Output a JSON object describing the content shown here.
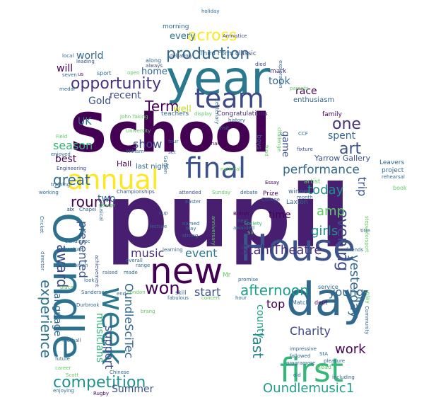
{
  "palette": {
    "deep_purple": "#440154",
    "indigo": "#3b528b",
    "blue_grey": "#31688e",
    "teal": "#21918c",
    "green": "#35b779",
    "lime": "#5ec962",
    "yellow": "#fde725",
    "violet": "#472d7b",
    "sea": "#1f9e89"
  },
  "words": [
    {
      "text": "School",
      "color": "#440154"
    },
    {
      "text": "pupil",
      "color": "#481f70"
    },
    {
      "text": "year",
      "color": "#2a788e"
    },
    {
      "text": "new",
      "color": "#440154"
    },
    {
      "text": "House",
      "color": "#3b528b"
    },
    {
      "text": "day",
      "color": "#31688e"
    },
    {
      "text": "Oundle",
      "color": "#2c718e"
    },
    {
      "text": "first",
      "color": "#35b779"
    },
    {
      "text": "team",
      "color": "#3e4989"
    },
    {
      "text": "final",
      "color": "#3b528b"
    },
    {
      "text": "annual",
      "color": "#fde725"
    },
    {
      "text": "week",
      "color": "#2a788e"
    },
    {
      "text": "across",
      "color": "#fde725"
    },
    {
      "text": "production",
      "color": "#31688e"
    },
    {
      "text": "opportunity",
      "color": "#46327e"
    },
    {
      "text": "competition",
      "color": "#21918c"
    },
    {
      "text": "won",
      "color": "#440154"
    },
    {
      "text": "afternoon",
      "color": "#1f9e89"
    },
    {
      "text": "Oundlemusic1",
      "color": "#1f9e89"
    },
    {
      "text": "StahlTheatre",
      "color": "#472d7b"
    },
    {
      "text": "evening",
      "color": "#3e4989"
    },
    {
      "text": "experience",
      "color": "#2c718e"
    },
    {
      "text": "award",
      "color": "#3e4989"
    },
    {
      "text": "round",
      "color": "#440154"
    },
    {
      "text": "great",
      "color": "#31688e"
    },
    {
      "text": "Term",
      "color": "#440154"
    },
    {
      "text": "art",
      "color": "#3b528b"
    },
    {
      "text": "one",
      "color": "#46327e"
    },
    {
      "text": "amp",
      "color": "#5ec962"
    },
    {
      "text": "trip",
      "color": "#3b528b"
    },
    {
      "text": "today",
      "color": "#21918c"
    },
    {
      "text": "performance",
      "color": "#31688e"
    },
    {
      "text": "girls",
      "color": "#21918c"
    },
    {
      "text": "yesterday",
      "color": "#31688e"
    },
    {
      "text": "work",
      "color": "#440154"
    },
    {
      "text": "Charity",
      "color": "#3e4989"
    },
    {
      "text": "young",
      "color": "#31688e"
    },
    {
      "text": "last",
      "color": "#26828e"
    },
    {
      "text": "county",
      "color": "#20a486"
    },
    {
      "text": "top",
      "color": "#440154"
    },
    {
      "text": "start",
      "color": "#3b528b"
    },
    {
      "text": "event",
      "color": "#2a788e"
    },
    {
      "text": "music",
      "color": "#472d7b"
    },
    {
      "text": "OundleSciTec",
      "color": "#31688e"
    },
    {
      "text": "musicians",
      "color": "#35b779"
    },
    {
      "text": "support",
      "color": "#3b528b"
    },
    {
      "text": "presented",
      "color": "#3b528b"
    },
    {
      "text": "language",
      "color": "#31688e"
    },
    {
      "text": "Summer",
      "color": "#3b528b"
    },
    {
      "text": "two",
      "color": "#31688e"
    },
    {
      "text": "season",
      "color": "#35b779"
    },
    {
      "text": "show",
      "color": "#3b528b"
    },
    {
      "text": "best",
      "color": "#440154"
    },
    {
      "text": "UK",
      "color": "#2c718e"
    },
    {
      "text": "Gold",
      "color": "#3b528b"
    },
    {
      "text": "recent",
      "color": "#3e4989"
    },
    {
      "text": "will",
      "color": "#440154"
    },
    {
      "text": "world",
      "color": "#31688e"
    },
    {
      "text": "home",
      "color": "#31688e"
    },
    {
      "text": "every",
      "color": "#2a788e"
    },
    {
      "text": "race",
      "color": "#440154"
    },
    {
      "text": "took",
      "color": "#31688e"
    },
    {
      "text": "well",
      "color": "#c2df23"
    },
    {
      "text": "game",
      "color": "#3b528b"
    },
    {
      "text": "spent",
      "color": "#31688e"
    },
    {
      "text": "time",
      "color": "#440154"
    },
    {
      "text": "Yarrow Gallery",
      "color": "#3b528b"
    },
    {
      "text": "Hall",
      "color": "#440154"
    },
    {
      "text": "last night",
      "color": "#31688e"
    },
    {
      "text": "Congratulations",
      "color": "#472d7b"
    },
    {
      "text": "teachers",
      "color": "#31688e"
    },
    {
      "text": "morning",
      "color": "#31688e"
    },
    {
      "text": "Third Form",
      "color": "#31688e"
    },
    {
      "text": "classic",
      "color": "#3e4989"
    },
    {
      "text": "enthusiasm",
      "color": "#31688e"
    },
    {
      "text": "artist",
      "color": "#5ec962"
    },
    {
      "text": "winner",
      "color": "#31688e"
    },
    {
      "text": "Laxton",
      "color": "#31688e"
    },
    {
      "text": "Prize",
      "color": "#440154"
    },
    {
      "text": "mark",
      "color": "#472d7b"
    },
    {
      "text": "family",
      "color": "#440154"
    },
    {
      "text": "boys",
      "color": "#31688e"
    },
    {
      "text": "Leavers",
      "color": "#31688e"
    },
    {
      "text": "project",
      "color": "#31688e"
    },
    {
      "text": "book",
      "color": "#5ec962"
    },
    {
      "text": "holiday",
      "color": "#31688e"
    },
    {
      "text": "local",
      "color": "#31688e"
    },
    {
      "text": "leading",
      "color": "#3b528b"
    },
    {
      "text": "sport",
      "color": "#31688e"
    },
    {
      "text": "seven",
      "color": "#31688e"
    },
    {
      "text": "us",
      "color": "#440154"
    },
    {
      "text": "open",
      "color": "#5ec962"
    },
    {
      "text": "along",
      "color": "#31688e"
    },
    {
      "text": "always",
      "color": "#3e4989"
    },
    {
      "text": "debating",
      "color": "#3b528b"
    },
    {
      "text": "died",
      "color": "#3e4989"
    },
    {
      "text": "Amnistice",
      "color": "#3e4989"
    },
    {
      "text": "exploration",
      "color": "#31688e"
    },
    {
      "text": "medal",
      "color": "#31688e"
    },
    {
      "text": "history",
      "color": "#31688e"
    },
    {
      "text": "thank",
      "color": "#440154"
    },
    {
      "text": "tour",
      "color": "#31688e"
    },
    {
      "text": "William",
      "color": "#31688e"
    },
    {
      "text": "set",
      "color": "#3b528b"
    },
    {
      "text": "Field",
      "color": "#5ec962"
    },
    {
      "text": "enjoyed",
      "color": "#31688e"
    },
    {
      "text": "Engineering",
      "color": "#3e4989"
    },
    {
      "text": "training",
      "color": "#31688e"
    },
    {
      "text": "working",
      "color": "#31688e"
    },
    {
      "text": "national",
      "color": "#5ec962"
    },
    {
      "text": "Essay",
      "color": "#440154"
    },
    {
      "text": "College",
      "color": "#3b528b"
    },
    {
      "text": "Championships",
      "color": "#3b528b"
    },
    {
      "text": "attended",
      "color": "#3b528b"
    },
    {
      "text": "Sunday",
      "color": "#5ec962"
    },
    {
      "text": "debate",
      "color": "#31688e"
    },
    {
      "text": "Chapel",
      "color": "#31688e"
    },
    {
      "text": "six",
      "color": "#440154"
    },
    {
      "text": "design",
      "color": "#5ec962"
    },
    {
      "text": "Easter",
      "color": "#31688e"
    },
    {
      "text": "cup",
      "color": "#31688e"
    },
    {
      "text": "British",
      "color": "#440154"
    },
    {
      "text": "next",
      "color": "#31688e"
    },
    {
      "text": "Society",
      "color": "#35b779"
    },
    {
      "text": "Sir",
      "color": "#5ec962"
    },
    {
      "text": "awarded",
      "color": "#31688e"
    },
    {
      "text": "named",
      "color": "#31688e"
    },
    {
      "text": "lecture",
      "color": "#31688e"
    },
    {
      "text": "oundlesoc",
      "color": "#31688e"
    },
    {
      "text": "adventure",
      "color": "#31688e"
    },
    {
      "text": "achievement",
      "color": "#3b528b"
    },
    {
      "text": "learning",
      "color": "#31688e"
    },
    {
      "text": "anniversary",
      "color": "#5ec962"
    },
    {
      "text": "friends",
      "color": "#31688e"
    },
    {
      "text": "title",
      "color": "#31688e"
    },
    {
      "text": "director",
      "color": "#31688e"
    },
    {
      "text": "exhibition",
      "color": "#31688e"
    },
    {
      "text": "overall",
      "color": "#31688e"
    },
    {
      "text": "range",
      "color": "#31688e"
    },
    {
      "text": "raised",
      "color": "#31688e"
    },
    {
      "text": "made",
      "color": "#31688e"
    },
    {
      "text": "Mr",
      "color": "#5ec962"
    },
    {
      "text": "service",
      "color": "#31688e"
    },
    {
      "text": "place",
      "color": "#5ec962"
    },
    {
      "text": "Sanderson",
      "color": "#31688e"
    },
    {
      "text": "London",
      "color": "#5ec962"
    },
    {
      "text": "end",
      "color": "#31688e"
    },
    {
      "text": "look",
      "color": "#31688e"
    },
    {
      "text": "skill",
      "color": "#3b528b"
    },
    {
      "text": "fabulous",
      "color": "#31688e"
    },
    {
      "text": "concert",
      "color": "#5ec962"
    },
    {
      "text": "hour",
      "color": "#31688e"
    },
    {
      "text": "Match",
      "color": "#31688e"
    },
    {
      "text": "dept",
      "color": "#440154"
    },
    {
      "text": "play",
      "color": "#5ec962"
    },
    {
      "text": "followed",
      "color": "#31688e"
    },
    {
      "text": "StA",
      "color": "#31688e"
    },
    {
      "text": "impressive",
      "color": "#31688e"
    },
    {
      "text": "pleasure",
      "color": "#31688e"
    },
    {
      "text": "Head",
      "color": "#5ec962"
    },
    {
      "text": "old",
      "color": "#31688e"
    },
    {
      "text": "future",
      "color": "#31688e"
    },
    {
      "text": "career",
      "color": "#5ec962"
    },
    {
      "text": "Scott",
      "color": "#5ec962"
    },
    {
      "text": "football",
      "color": "#31688e"
    },
    {
      "text": "Chinese",
      "color": "#31688e"
    },
    {
      "text": "Rugby",
      "color": "#440154"
    },
    {
      "text": "enjoying",
      "color": "#31688e"
    },
    {
      "text": "including",
      "color": "#31688e"
    },
    {
      "text": "Cricket",
      "color": "#31688e"
    },
    {
      "text": "challenge",
      "color": "#5ec962"
    },
    {
      "text": "fund",
      "color": "#5ec962"
    },
    {
      "text": "fixture",
      "color": "#3b528b"
    },
    {
      "text": "rehearsal",
      "color": "#31688e"
    },
    {
      "text": "CCF",
      "color": "#31688e"
    },
    {
      "text": "stepupforsport",
      "color": "#5ec962"
    },
    {
      "text": "Community",
      "color": "#31688e"
    },
    {
      "text": "centenary",
      "color": "#31688e"
    },
    {
      "text": "John Taking",
      "color": "#5ec962"
    },
    {
      "text": "University",
      "color": "#5ec962"
    },
    {
      "text": "visit",
      "color": "#31688e"
    },
    {
      "text": "display",
      "color": "#5ec962"
    },
    {
      "text": "parents",
      "color": "#5ec962"
    },
    {
      "text": "strong",
      "color": "#31688e"
    },
    {
      "text": "May",
      "color": "#31688e"
    },
    {
      "text": "musical",
      "color": "#31688e"
    },
    {
      "text": "promise",
      "color": "#31688e"
    },
    {
      "text": "Garden",
      "color": "#31688e"
    },
    {
      "text": "month",
      "color": "#31688e"
    },
    {
      "text": "programme",
      "color": "#31688e"
    },
    {
      "text": "brang",
      "color": "#5ec962"
    },
    {
      "text": "Durbrook",
      "color": "#31688e"
    },
    {
      "text": "six",
      "color": "#31688e"
    }
  ]
}
